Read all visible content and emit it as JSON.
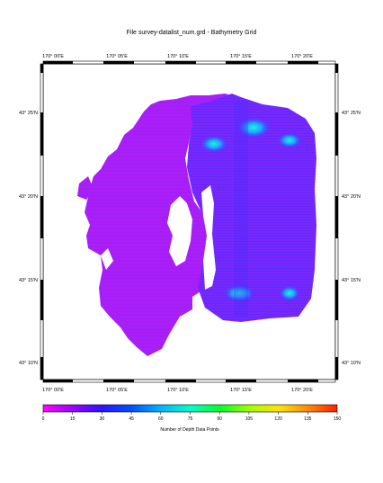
{
  "title": "File survey-datalist_num.grd - Bathymetry Grid",
  "map": {
    "lon_labels": [
      "170° 00'E",
      "170° 05'E",
      "170° 10'E",
      "170° 15'E",
      "170° 20'E"
    ],
    "lat_labels": [
      "43° 25'N",
      "43° 20'N",
      "43° 15'N",
      "43° 10'N"
    ]
  },
  "colorbar": {
    "label": "Number of Depth Data Points",
    "ticks": [
      "0",
      "15",
      "30",
      "45",
      "60",
      "75",
      "90",
      "105",
      "120",
      "135",
      "150"
    ],
    "stops": [
      "#ff00ff",
      "#9b00ff",
      "#2a14ff",
      "#0050ff",
      "#00b4ff",
      "#00ffc8",
      "#00ff28",
      "#a0ff00",
      "#ffe400",
      "#ff8a00",
      "#ff1e00"
    ]
  },
  "colors": {
    "grid_base": "#b61ef6",
    "grid_dense": "#6a28ff",
    "hotspot_cyan": "#22e8e0",
    "hotspot_blue": "#1e5cff"
  }
}
